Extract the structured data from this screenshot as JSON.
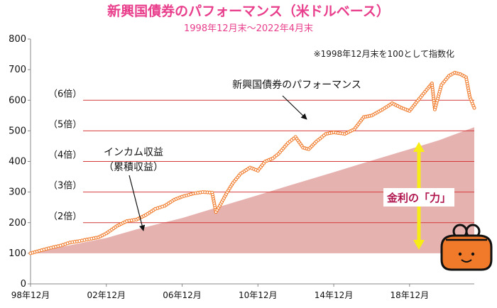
{
  "chart_data": {
    "type": "line",
    "title": "新興国債券のパフォーマンス（米ドルベース）",
    "subtitle": "1998年12月末～2022年4月末",
    "note": "※1998年12月末を100として指数化",
    "ylim": [
      0,
      800
    ],
    "y_ticks": [
      "0",
      "100",
      "200",
      "300",
      "400",
      "500",
      "600",
      "700",
      "800"
    ],
    "x_tick_labels": [
      "98年12月",
      "02年12月",
      "06年12月",
      "10年12月",
      "14年12月",
      "18年12月"
    ],
    "xlim": [
      1998.917,
      2022.333
    ],
    "multiple_lines": [
      {
        "value": 200,
        "label": "（2倍）"
      },
      {
        "value": 300,
        "label": "（3倍）"
      },
      {
        "value": 400,
        "label": "（4倍）"
      },
      {
        "value": 500,
        "label": "（5倍）"
      },
      {
        "value": 600,
        "label": "（6倍）"
      }
    ],
    "series": [
      {
        "name": "新興国債券のパフォーマンス",
        "color": "#f07a2a",
        "x": [
          1998.917,
          1999.5,
          2000.0,
          2000.5,
          2001.0,
          2001.5,
          2001.9,
          2002.5,
          2002.917,
          2003.5,
          2004.0,
          2004.5,
          2005.0,
          2005.5,
          2006.0,
          2006.5,
          2006.917,
          2007.5,
          2008.0,
          2008.5,
          2008.7,
          2008.9,
          2009.3,
          2009.6,
          2010.0,
          2010.5,
          2010.917,
          2011.3,
          2011.7,
          2012.0,
          2012.5,
          2012.9,
          2013.3,
          2013.6,
          2014.0,
          2014.5,
          2014.917,
          2015.5,
          2016.0,
          2016.5,
          2016.917,
          2017.5,
          2018.0,
          2018.5,
          2018.917,
          2019.5,
          2019.9,
          2020.1,
          2020.25,
          2020.6,
          2021.0,
          2021.3,
          2021.6,
          2021.9,
          2022.1,
          2022.333
        ],
        "values": [
          100,
          110,
          118,
          125,
          135,
          140,
          145,
          152,
          165,
          190,
          205,
          210,
          225,
          245,
          255,
          275,
          285,
          295,
          300,
          298,
          235,
          255,
          300,
          330,
          360,
          380,
          370,
          400,
          410,
          425,
          460,
          480,
          445,
          440,
          465,
          490,
          495,
          490,
          505,
          545,
          550,
          570,
          590,
          575,
          565,
          610,
          640,
          655,
          570,
          650,
          680,
          690,
          685,
          675,
          610,
          575
        ]
      }
    ],
    "income": {
      "name": "インカム収益",
      "name2": "（累積収益）",
      "color": "#e6b2b0",
      "x": [
        1998.917,
        2000.5,
        2002.917,
        2004.5,
        2006.917,
        2008.5,
        2010.917,
        2012.5,
        2014.917,
        2016.5,
        2018.917,
        2020.5,
        2022.333
      ],
      "values": [
        100,
        120,
        150,
        178,
        215,
        245,
        290,
        320,
        365,
        395,
        440,
        470,
        512
      ]
    },
    "series_label": "新興国債券のパフォーマンス",
    "power_label": "金利の「力」",
    "colors": {
      "title": "#e83e8c",
      "performance": "#f07a2a",
      "income": "#e6b2b0",
      "multiple_line": "#d43a3a",
      "arrow": "#f7ec16",
      "power_text": "#b0154e",
      "purse": "#f07a2a"
    },
    "icon": "coin-purse-icon"
  }
}
